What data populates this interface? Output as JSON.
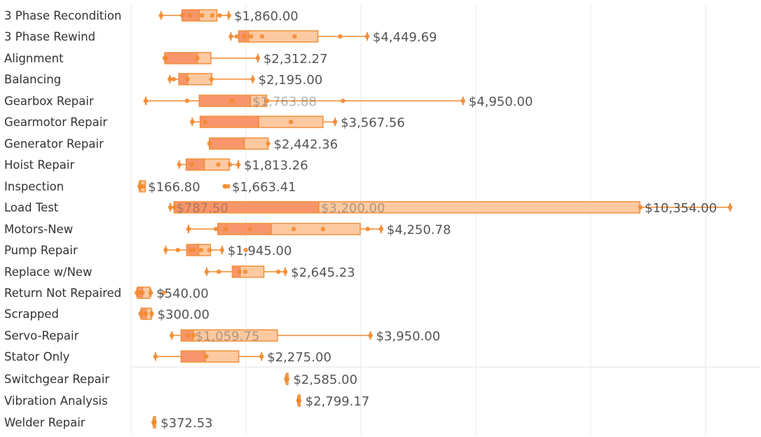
{
  "chart_data": {
    "type": "boxplot",
    "title": "",
    "xlabel": "",
    "ylabel": "",
    "grid": true,
    "colors": {
      "lower_box": "#f8956a",
      "upper_box": "#fdc9a1",
      "box_edge": "#f2903a",
      "whisker": "#f28a2e",
      "point": "#f28a2e",
      "grid": "#e8e8e8",
      "label": "#555555"
    },
    "x_scale": {
      "value0": 0,
      "value_per_unit": 10400
    },
    "categories": [
      {
        "label": "3 Phase Recondition",
        "min": 600,
        "q1": 1050,
        "median": 1420,
        "q3": 1800,
        "max": 2050,
        "points": [
          600,
          1060,
          1220,
          1480,
          1700,
          1860,
          2060
        ],
        "value_label": "$1,860.00"
      },
      {
        "label": "3 Phase Rewind",
        "min": 2100,
        "q1": 2270,
        "median": 2480,
        "q3": 3970,
        "max": 5030,
        "points": [
          2100,
          2230,
          2390,
          2530,
          2770,
          3470,
          4450,
          5030
        ],
        "value_label": "$4,449.69"
      },
      {
        "label": "Alignment",
        "min": 680,
        "q1": 680,
        "median": 1380,
        "q3": 1670,
        "max": 2680,
        "points": [
          680,
          700,
          1380,
          2680
        ],
        "value_label": "$2,312.27"
      },
      {
        "label": "Balancing",
        "min": 790,
        "q1": 980,
        "median": 1170,
        "q3": 1690,
        "max": 2570,
        "points": [
          790,
          870,
          1170,
          1680,
          2570
        ],
        "value_label": "$2,195.00"
      },
      {
        "label": "Gearbox Repair",
        "min": 270,
        "q1": 1420,
        "median": 2520,
        "q3": 2870,
        "max": 7090,
        "points": [
          270,
          1160,
          2120,
          2880,
          4510,
          7090
        ],
        "value_label": "$4,950.00",
        "faint_label": "$1,763.88"
      },
      {
        "label": "Gearmotor Repair",
        "min": 1270,
        "q1": 1440,
        "median": 2700,
        "q3": 4080,
        "max": 4340,
        "points": [
          1270,
          1550,
          3390,
          4340
        ],
        "value_label": "$3,567.56"
      },
      {
        "label": "Generator Repair",
        "min": 1640,
        "q1": 1640,
        "median": 2390,
        "q3": 2900,
        "max": 2900,
        "points": [
          1640,
          2900
        ],
        "value_label": "$2,442.36"
      },
      {
        "label": "Hoist Repair",
        "min": 990,
        "q1": 1140,
        "median": 1530,
        "q3": 2070,
        "max": 2260,
        "points": [
          990,
          1260,
          1830,
          2080,
          2260
        ],
        "value_label": "$1,813.26"
      },
      {
        "label": "Inspection",
        "min": 130,
        "q1": 140,
        "median": 160,
        "q3": 260,
        "max": 260,
        "points": [
          140,
          170,
          210,
          2040
        ],
        "value_label": "$166.80",
        "extra_label": "$1,663.41"
      },
      {
        "label": "Load Test",
        "min": 800,
        "q1": 880,
        "median": 3990,
        "q3": 10890,
        "max": 12830,
        "points": [
          800,
          890,
          10900,
          12830
        ],
        "value_label": "$10,354.00",
        "faint_labels": [
          "$787.50",
          "$3,200.00"
        ]
      },
      {
        "label": "Motors-New",
        "min": 1190,
        "q1": 1820,
        "median": 2970,
        "q3": 4880,
        "max": 5330,
        "points": [
          1190,
          1780,
          1990,
          2510,
          3450,
          4080,
          5040,
          5330
        ],
        "value_label": "$4,250.78"
      },
      {
        "label": "Pump Repair",
        "min": 700,
        "q1": 1150,
        "median": 1410,
        "q3": 1660,
        "max": 1910,
        "points": [
          700,
          960,
          1230,
          1300,
          1460,
          1640,
          1910,
          2420
        ],
        "value_label": "$1,945.00"
      },
      {
        "label": "Replace w/New",
        "min": 1580,
        "q1": 2130,
        "median": 2300,
        "q3": 2810,
        "max": 3270,
        "points": [
          1580,
          1840,
          2280,
          2410,
          3120,
          3270
        ],
        "value_label": "$2,645.23"
      },
      {
        "label": "Return Not Repaired",
        "min": 80,
        "q1": 90,
        "median": 200,
        "q3": 360,
        "max": 380,
        "points": [
          80,
          120,
          200,
          380,
          650
        ],
        "value_label": "$540.00"
      },
      {
        "label": "Scrapped",
        "min": 160,
        "q1": 170,
        "median": 280,
        "q3": 390,
        "max": 400,
        "points": [
          160,
          270,
          400
        ],
        "value_label": "$300.00"
      },
      {
        "label": "Servo-Repair",
        "min": 830,
        "q1": 1030,
        "median": 1290,
        "q3": 3100,
        "max": 5100,
        "points": [
          830,
          1170,
          1300,
          5100
        ],
        "value_label": "$3,950.00",
        "faint_label": "$1,059.75"
      },
      {
        "label": "Stator Only",
        "min": 480,
        "q1": 1030,
        "median": 1550,
        "q3": 2270,
        "max": 2760,
        "points": [
          480,
          1570,
          2760
        ],
        "value_label": "$2,275.00"
      },
      {
        "label": "Switchgear Repair",
        "min": 3280,
        "q1": 3290,
        "median": 3300,
        "q3": 3310,
        "max": 3320,
        "points": [
          3290,
          3310
        ],
        "value_label": "$2,585.00"
      },
      {
        "label": "Vibration Analysis",
        "min": 3540,
        "q1": 3550,
        "median": 3560,
        "q3": 3570,
        "max": 3580,
        "points": [
          3550,
          3570
        ],
        "value_label": "$2,799.17"
      },
      {
        "label": "Welder Repair",
        "min": 430,
        "q1": 440,
        "median": 450,
        "q3": 460,
        "max": 470,
        "points": [
          440,
          460
        ],
        "value_label": "$372.53"
      }
    ]
  }
}
